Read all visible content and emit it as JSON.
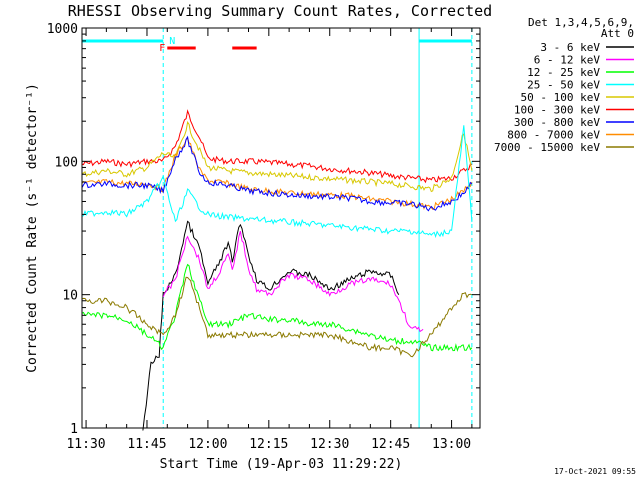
{
  "chart_data": {
    "type": "line",
    "title": "RHESSI Observing Summary Count Rates, Corrected",
    "xlabel": "Start Time (19-Apr-03 11:29:22)",
    "ylabel": "Corrected Count Rate (s⁻¹ detector⁻¹)",
    "xlim": [
      "11:29",
      "13:07"
    ],
    "ylim": [
      1,
      1000
    ],
    "yscale": "log",
    "x_ticks": [
      "11:30",
      "11:45",
      "12:00",
      "12:15",
      "12:30",
      "12:45",
      "13:00"
    ],
    "y_ticks": [
      "1",
      "10",
      "100",
      "1000"
    ],
    "legend": {
      "header": [
        "Det 1,3,4,5,6,9,",
        "Att 0"
      ],
      "placement": "right",
      "entries": [
        {
          "label": "3 - 6 keV",
          "color": "#000000"
        },
        {
          "label": "6 - 12 keV",
          "color": "#ff00ff"
        },
        {
          "label": "12 - 25 keV",
          "color": "#00ff00"
        },
        {
          "label": "25 - 50 keV",
          "color": "#00ffff"
        },
        {
          "label": "50 - 100 keV",
          "color": "#d8c800"
        },
        {
          "label": "100 - 300 keV",
          "color": "#ff0000"
        },
        {
          "label": "300 - 800 keV",
          "color": "#0000ff"
        },
        {
          "label": "800 - 7000 keV",
          "color": "#ff8c00"
        },
        {
          "label": "7000 - 15000 keV",
          "color": "#8b7a00"
        }
      ]
    },
    "flags": {
      "N_label": "N",
      "F_label": "F",
      "N_color": "#00ffff",
      "F_color": "#ff0000",
      "night_intervals": [
        [
          "11:29",
          "11:49"
        ],
        [
          "12:52",
          "13:05"
        ]
      ],
      "flare_intervals": [
        [
          "11:50",
          "11:57"
        ],
        [
          "12:06",
          "12:12"
        ]
      ]
    },
    "vertical_markers": [
      {
        "time": "11:49",
        "style": "dashed",
        "color": "#00ffff"
      },
      {
        "time": "12:52",
        "style": "solid",
        "color": "#00ffff"
      },
      {
        "time": "13:05",
        "style": "dashed",
        "color": "#00ffff"
      }
    ],
    "series": [
      {
        "name": "100 - 300 keV",
        "color": "#ff0000",
        "points": [
          [
            "11:29",
            95
          ],
          [
            "11:35",
            100
          ],
          [
            "11:40",
            95
          ],
          [
            "11:45",
            100
          ],
          [
            "11:49",
            100
          ],
          [
            "11:52",
            130
          ],
          [
            "11:55",
            230
          ],
          [
            "11:58",
            150
          ],
          [
            "12:00",
            105
          ],
          [
            "12:05",
            100
          ],
          [
            "12:10",
            100
          ],
          [
            "12:15",
            98
          ],
          [
            "12:20",
            95
          ],
          [
            "12:25",
            92
          ],
          [
            "12:30",
            88
          ],
          [
            "12:35",
            85
          ],
          [
            "12:40",
            82
          ],
          [
            "12:45",
            78
          ],
          [
            "12:50",
            75
          ],
          [
            "12:55",
            72
          ],
          [
            "13:00",
            75
          ],
          [
            "13:03",
            85
          ],
          [
            "13:05",
            95
          ]
        ]
      },
      {
        "name": "50 - 100 keV",
        "color": "#d8c800",
        "points": [
          [
            "11:29",
            80
          ],
          [
            "11:35",
            85
          ],
          [
            "11:40",
            80
          ],
          [
            "11:45",
            90
          ],
          [
            "11:49",
            115
          ],
          [
            "11:52",
            105
          ],
          [
            "11:55",
            190
          ],
          [
            "11:58",
            120
          ],
          [
            "12:00",
            90
          ],
          [
            "12:05",
            85
          ],
          [
            "12:10",
            82
          ],
          [
            "12:15",
            80
          ],
          [
            "12:20",
            78
          ],
          [
            "12:25",
            76
          ],
          [
            "12:30",
            74
          ],
          [
            "12:35",
            72
          ],
          [
            "12:40",
            70
          ],
          [
            "12:45",
            68
          ],
          [
            "12:50",
            65
          ],
          [
            "12:55",
            62
          ],
          [
            "13:00",
            75
          ],
          [
            "13:03",
            165
          ],
          [
            "13:05",
            85
          ]
        ]
      },
      {
        "name": "800 - 7000 keV",
        "color": "#ff8c00",
        "points": [
          [
            "11:29",
            68
          ],
          [
            "11:35",
            70
          ],
          [
            "11:40",
            68
          ],
          [
            "11:45",
            68
          ],
          [
            "11:49",
            62
          ],
          [
            "11:52",
            110
          ],
          [
            "11:55",
            150
          ],
          [
            "11:58",
            85
          ],
          [
            "12:00",
            72
          ],
          [
            "12:05",
            68
          ],
          [
            "12:10",
            62
          ],
          [
            "12:15",
            60
          ],
          [
            "12:20",
            58
          ],
          [
            "12:25",
            57
          ],
          [
            "12:30",
            56
          ],
          [
            "12:35",
            55
          ],
          [
            "12:40",
            52
          ],
          [
            "12:45",
            50
          ],
          [
            "12:50",
            48
          ],
          [
            "12:55",
            45
          ],
          [
            "13:00",
            52
          ],
          [
            "13:03",
            60
          ],
          [
            "13:05",
            70
          ]
        ]
      },
      {
        "name": "300 - 800 keV",
        "color": "#0000ff",
        "points": [
          [
            "11:29",
            66
          ],
          [
            "11:35",
            68
          ],
          [
            "11:40",
            66
          ],
          [
            "11:45",
            66
          ],
          [
            "11:49",
            60
          ],
          [
            "11:52",
            105
          ],
          [
            "11:55",
            145
          ],
          [
            "11:58",
            82
          ],
          [
            "12:00",
            70
          ],
          [
            "12:05",
            66
          ],
          [
            "12:10",
            60
          ],
          [
            "12:15",
            58
          ],
          [
            "12:20",
            56
          ],
          [
            "12:25",
            55
          ],
          [
            "12:30",
            54
          ],
          [
            "12:35",
            53
          ],
          [
            "12:40",
            50
          ],
          [
            "12:45",
            49
          ],
          [
            "12:50",
            48
          ],
          [
            "12:55",
            44
          ],
          [
            "13:00",
            50
          ],
          [
            "13:03",
            58
          ],
          [
            "13:05",
            68
          ]
        ]
      },
      {
        "name": "25 - 50 keV",
        "color": "#00ffff",
        "points": [
          [
            "11:29",
            40
          ],
          [
            "11:35",
            42
          ],
          [
            "11:40",
            40
          ],
          [
            "11:45",
            50
          ],
          [
            "11:49",
            75
          ],
          [
            "11:52",
            35
          ],
          [
            "11:55",
            60
          ],
          [
            "11:58",
            45
          ],
          [
            "12:00",
            40
          ],
          [
            "12:05",
            38
          ],
          [
            "12:10",
            37
          ],
          [
            "12:15",
            36
          ],
          [
            "12:20",
            35
          ],
          [
            "12:25",
            34
          ],
          [
            "12:30",
            33
          ],
          [
            "12:35",
            32
          ],
          [
            "12:40",
            31
          ],
          [
            "12:45",
            30
          ],
          [
            "12:50",
            30
          ],
          [
            "12:55",
            28
          ],
          [
            "13:00",
            30
          ],
          [
            "13:03",
            180
          ],
          [
            "13:05",
            35
          ]
        ]
      },
      {
        "name": "3 - 6 keV",
        "color": "#000000",
        "points": [
          [
            "11:44",
            1
          ],
          [
            "11:46",
            3
          ],
          [
            "11:48",
            3.5
          ],
          [
            "11:49",
            10
          ],
          [
            "11:52",
            14
          ],
          [
            "11:55",
            35
          ],
          [
            "11:58",
            22
          ],
          [
            "12:00",
            12
          ],
          [
            "12:03",
            18
          ],
          [
            "12:05",
            24
          ],
          [
            "12:06",
            18
          ],
          [
            "12:08",
            35
          ],
          [
            "12:10",
            20
          ],
          [
            "12:12",
            13
          ],
          [
            "12:15",
            11
          ],
          [
            "12:20",
            15
          ],
          [
            "12:25",
            14
          ],
          [
            "12:30",
            11
          ],
          [
            "12:35",
            13
          ],
          [
            "12:40",
            15
          ],
          [
            "12:45",
            14
          ],
          [
            "12:47",
            10
          ]
        ]
      },
      {
        "name": "6 - 12 keV",
        "color": "#ff00ff",
        "points": [
          [
            "11:49",
            10
          ],
          [
            "11:52",
            13
          ],
          [
            "11:55",
            28
          ],
          [
            "11:58",
            18
          ],
          [
            "12:00",
            11
          ],
          [
            "12:03",
            15
          ],
          [
            "12:05",
            20
          ],
          [
            "12:06",
            15
          ],
          [
            "12:08",
            30
          ],
          [
            "12:10",
            16
          ],
          [
            "12:12",
            11
          ],
          [
            "12:15",
            10
          ],
          [
            "12:20",
            14
          ],
          [
            "12:25",
            13
          ],
          [
            "12:30",
            10
          ],
          [
            "12:35",
            12
          ],
          [
            "12:40",
            13
          ],
          [
            "12:45",
            12
          ],
          [
            "12:47",
            9
          ],
          [
            "12:50",
            5.5
          ],
          [
            "12:53",
            5.5
          ]
        ]
      },
      {
        "name": "12 - 25 keV",
        "color": "#00ff00",
        "points": [
          [
            "11:29",
            7
          ],
          [
            "11:35",
            7
          ],
          [
            "11:40",
            6.5
          ],
          [
            "11:45",
            5
          ],
          [
            "11:49",
            4
          ],
          [
            "11:52",
            7
          ],
          [
            "11:55",
            17
          ],
          [
            "11:58",
            9
          ],
          [
            "12:00",
            6
          ],
          [
            "12:05",
            6
          ],
          [
            "12:10",
            7
          ],
          [
            "12:15",
            6.5
          ],
          [
            "12:20",
            6.5
          ],
          [
            "12:25",
            6
          ],
          [
            "12:30",
            6
          ],
          [
            "12:35",
            5.5
          ],
          [
            "12:40",
            5
          ],
          [
            "12:45",
            4.5
          ],
          [
            "12:50",
            4.5
          ],
          [
            "12:55",
            4
          ],
          [
            "13:00",
            4
          ],
          [
            "13:05",
            4
          ]
        ]
      },
      {
        "name": "7000 - 15000 keV",
        "color": "#8b7a00",
        "points": [
          [
            "11:29",
            9
          ],
          [
            "11:35",
            9
          ],
          [
            "11:40",
            8
          ],
          [
            "11:45",
            6
          ],
          [
            "11:49",
            5
          ],
          [
            "11:52",
            7
          ],
          [
            "11:55",
            14
          ],
          [
            "11:58",
            8
          ],
          [
            "12:00",
            5
          ],
          [
            "12:05",
            5
          ],
          [
            "12:10",
            5
          ],
          [
            "12:15",
            5
          ],
          [
            "12:20",
            5
          ],
          [
            "12:25",
            5
          ],
          [
            "12:30",
            5
          ],
          [
            "12:35",
            4.5
          ],
          [
            "12:40",
            4
          ],
          [
            "12:45",
            4
          ],
          [
            "12:50",
            3.5
          ],
          [
            "12:55",
            5
          ],
          [
            "13:00",
            8
          ],
          [
            "13:03",
            10
          ],
          [
            "13:05",
            10
          ]
        ]
      }
    ]
  },
  "footer": {
    "timestamp": "17-Oct-2021 09:55"
  }
}
